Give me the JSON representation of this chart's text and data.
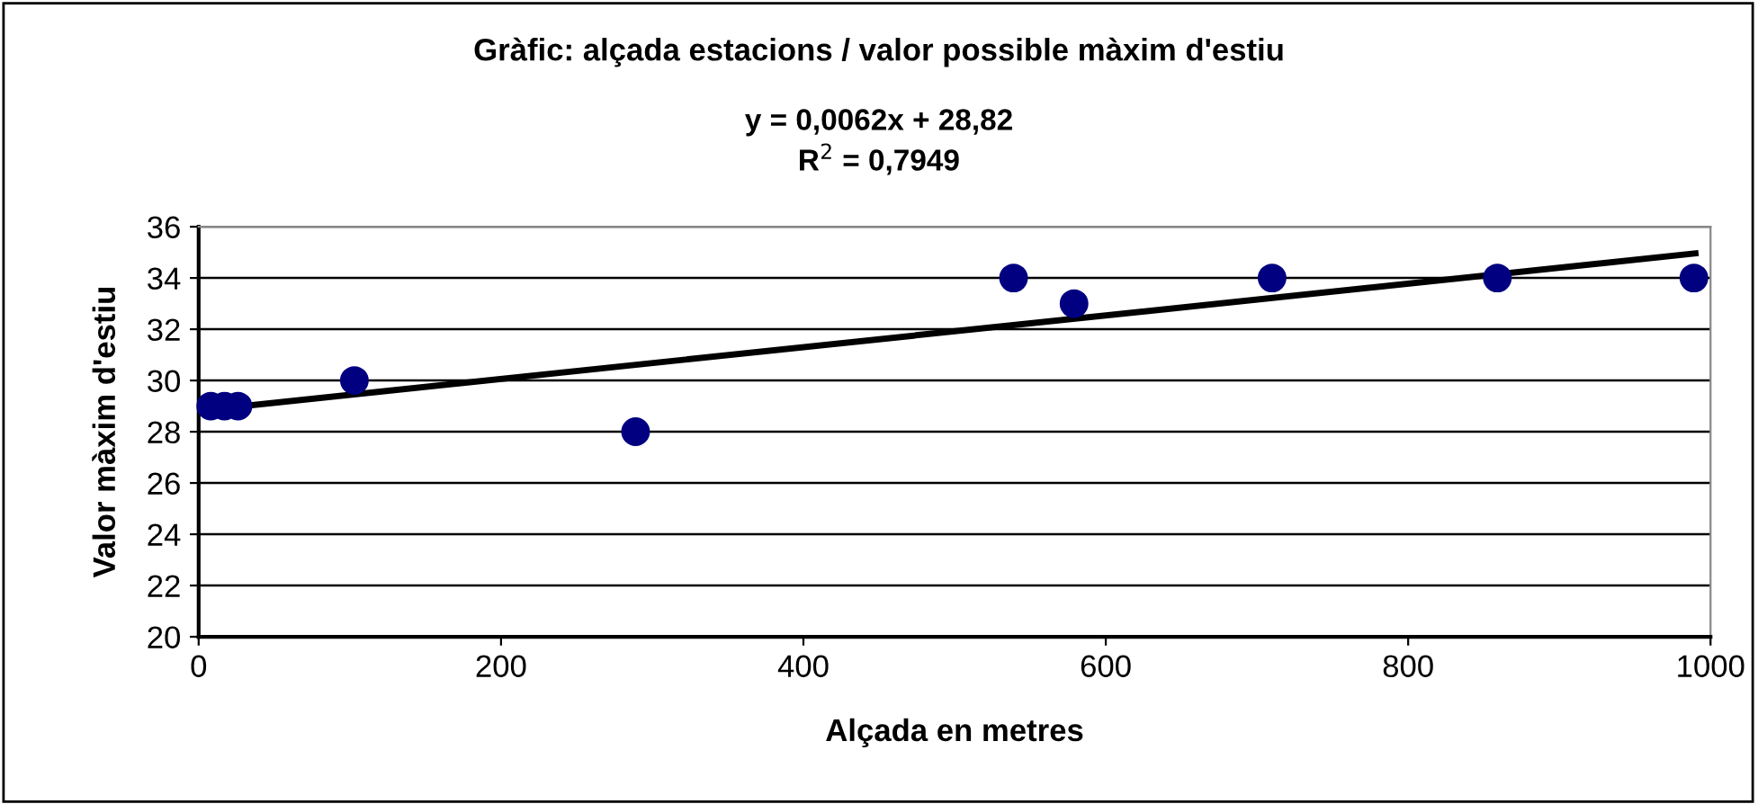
{
  "chart_data": {
    "type": "scatter",
    "title": "Gràfic: alçada estacions / valor possible màxim d'estiu",
    "xlabel": "Alçada en metres",
    "ylabel": "Valor màxim d'estiu",
    "annotations": [
      "y = 0,0062x + 28,82",
      "R$^{2}$ = 0,7949"
    ],
    "series": [
      {
        "color": "#000080",
        "marker": "circle",
        "x": [
          8,
          17,
          26,
          103,
          289,
          539,
          579,
          710,
          859,
          989
        ],
        "values": [
          29,
          29,
          29,
          30,
          28,
          34,
          33,
          34,
          34,
          34
        ]
      },
      {
        "type": "line",
        "color": "#000000",
        "marker": "none",
        "line_style": "solid",
        "x": [
          10,
          990
        ],
        "values": [
          28.88,
          34.96
        ]
      }
    ],
    "xlim": [
      0,
      1000
    ],
    "xticks": [
      0,
      200,
      400,
      600,
      800,
      1000
    ],
    "ylim": [
      20,
      36
    ],
    "yticks": [
      20,
      22,
      24,
      26,
      28,
      30,
      32,
      34,
      36
    ],
    "grid": "y",
    "legend": false
  }
}
